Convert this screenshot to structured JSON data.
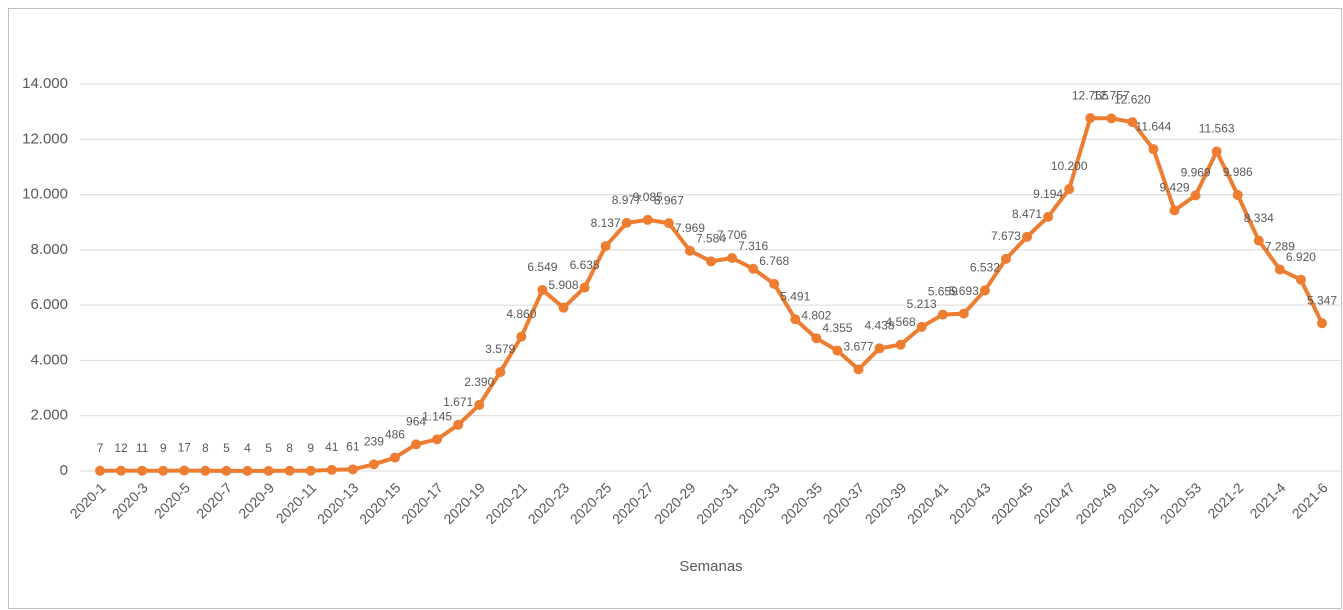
{
  "chart_data": {
    "type": "line",
    "x_label": "Semanas",
    "categories": [
      "2020-1",
      null,
      "2020-3",
      null,
      "2020-5",
      null,
      "2020-7",
      null,
      "2020-9",
      null,
      "2020-11",
      null,
      "2020-13",
      null,
      "2020-15",
      null,
      "2020-17",
      null,
      "2020-19",
      null,
      "2020-21",
      null,
      "2020-23",
      null,
      "2020-25",
      null,
      "2020-27",
      null,
      "2020-29",
      null,
      "2020-31",
      null,
      "2020-33",
      null,
      "2020-35",
      null,
      "2020-37",
      null,
      "2020-39",
      null,
      "2020-41",
      null,
      "2020-43",
      null,
      "2020-45",
      null,
      "2020-47",
      null,
      "2020-49",
      null,
      "2020-51",
      null,
      "2020-53",
      null,
      "2021-2",
      null,
      "2021-4",
      null,
      "2021-6"
    ],
    "values": [
      7,
      12,
      11,
      9,
      17,
      8,
      5,
      4,
      5,
      8,
      9,
      41,
      61,
      239,
      486,
      964,
      1145,
      1671,
      2390,
      3579,
      4860,
      6549,
      5908,
      6635,
      8137,
      8977,
      9085,
      8967,
      7969,
      7584,
      7706,
      7316,
      6768,
      5491,
      4802,
      4355,
      3677,
      4438,
      4568,
      5213,
      5659,
      5693,
      6532,
      7673,
      8471,
      9194,
      10200,
      12765,
      12757,
      12620,
      11644,
      9429,
      9969,
      11563,
      9986,
      8334,
      7289,
      6920,
      5347
    ],
    "value_labels": [
      "7",
      "12",
      "11",
      "9",
      "17",
      "8",
      "5",
      "4",
      "5",
      "8",
      "9",
      "41",
      "61",
      "239",
      "486",
      "964",
      "1.145",
      "1.671",
      "2.390",
      "3.579",
      "4.860",
      "6.549",
      "5.908",
      "6.635",
      "8.137",
      "8.977",
      "9.085",
      "8.967",
      "7.969",
      "7.584",
      "7.706",
      "7.316",
      "6.768",
      "5.491",
      "4.802",
      "4.355",
      "3.677",
      "4.438",
      "4.568",
      "5.213",
      "5.659",
      "5.693",
      "6.532",
      "7.673",
      "8.471",
      "9.194",
      "10.200",
      "12.765",
      "12.757",
      "12.620",
      "11.644",
      "9.429",
      "9.969",
      "11.563",
      "9.986",
      "8.334",
      "7.289",
      "6.920",
      "5.347"
    ],
    "color": "#ed7d31",
    "ylim": [
      0,
      14000
    ],
    "yticks": [
      0,
      {
        "value": 2000,
        "label": "2.000"
      },
      {
        "value": 4000,
        "label": "4.000"
      },
      {
        "value": 6000,
        "label": "6.000"
      },
      {
        "value": 8000,
        "label": "8.000"
      },
      {
        "value": 10000,
        "label": "10.000"
      },
      {
        "value": 12000,
        "label": "12.000"
      },
      {
        "value": 14000,
        "label": "14.000"
      }
    ],
    "grid": true
  }
}
